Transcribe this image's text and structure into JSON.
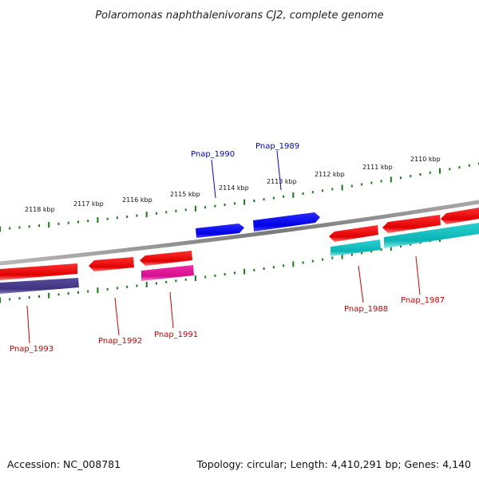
{
  "title": "Polaromonas naphthalenivorans CJ2, complete genome",
  "footer": {
    "accession": "Accession: NC_008781",
    "stats": "Topology: circular; Length: 4,410,291 bp; Genes: 4,140"
  },
  "colors": {
    "backbone": "#8a8a8a",
    "tick": "#1a7a1a",
    "forward_gene": "#0000ee",
    "reverse_gene": "#ee0000",
    "reverse_label": "#cc0000",
    "cds_purple": "#4b3f8c",
    "cds_magenta": "#e0189a",
    "cds_cyan": "#10bfbf"
  },
  "ticks": [
    {
      "label": "2118 kbp"
    },
    {
      "label": "2117 kbp"
    },
    {
      "label": "2116 kbp"
    },
    {
      "label": "2115 kbp"
    },
    {
      "label": "2114 kbp"
    },
    {
      "label": "2113 kbp"
    },
    {
      "label": "2112 kbp"
    },
    {
      "label": "2111 kbp"
    },
    {
      "label": "2110 kbp"
    }
  ],
  "genes": [
    {
      "id": "Pnap_1990",
      "label": "Pnap_1990",
      "strand": "forward"
    },
    {
      "id": "Pnap_1989",
      "label": "Pnap_1989",
      "strand": "forward"
    },
    {
      "id": "Pnap_1993",
      "label": "Pnap_1993",
      "strand": "reverse"
    },
    {
      "id": "Pnap_1992",
      "label": "Pnap_1992",
      "strand": "reverse"
    },
    {
      "id": "Pnap_1991",
      "label": "Pnap_1991",
      "strand": "reverse"
    },
    {
      "id": "Pnap_1988",
      "label": "Pnap_1988",
      "strand": "reverse"
    },
    {
      "id": "Pnap_1987",
      "label": "Pnap_1987",
      "strand": "reverse"
    }
  ]
}
